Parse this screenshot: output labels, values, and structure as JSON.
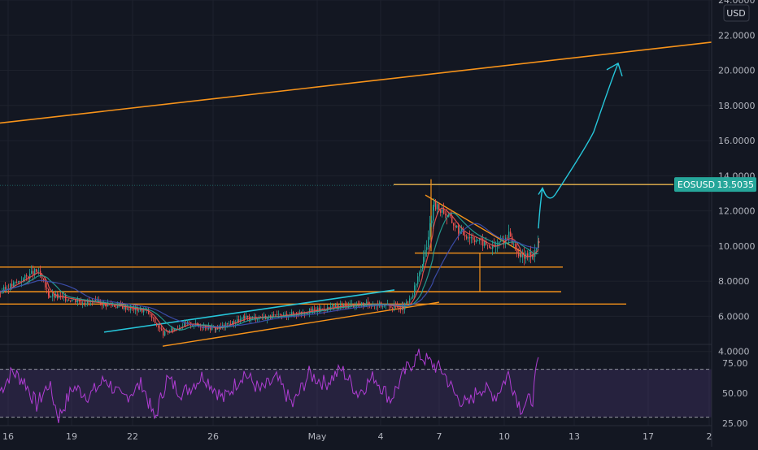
{
  "chart_data": {
    "type": "candlestick",
    "symbol": "EOSUSD",
    "currency": "USD",
    "last_price": 13.5035,
    "last_price_text": "13.5035",
    "price_axis": {
      "ylim": [
        3.2,
        24.0
      ],
      "ticks": [
        "24.0000",
        "22.0000",
        "20.0000",
        "18.0000",
        "16.0000",
        "14.0000",
        "12.0000",
        "10.0000",
        "8.0000",
        "6.0000",
        "4.0000"
      ],
      "tick_values": [
        24,
        22,
        20,
        18,
        16,
        14,
        12,
        10,
        8,
        6,
        4
      ]
    },
    "time_axis": {
      "labels": [
        "16",
        "19",
        "22",
        "26",
        "May",
        "4",
        "7",
        "10",
        "13",
        "17",
        "2"
      ]
    },
    "price_key_points": [
      {
        "t": 0,
        "v": 7.4
      },
      {
        "t": 30,
        "v": 8.2
      },
      {
        "t": 45,
        "v": 8.6
      },
      {
        "t": 60,
        "v": 7.2
      },
      {
        "t": 95,
        "v": 6.9
      },
      {
        "t": 130,
        "v": 6.7
      },
      {
        "t": 180,
        "v": 6.3
      },
      {
        "t": 200,
        "v": 5.0
      },
      {
        "t": 230,
        "v": 5.6
      },
      {
        "t": 265,
        "v": 5.3
      },
      {
        "t": 300,
        "v": 5.9
      },
      {
        "t": 340,
        "v": 6.0
      },
      {
        "t": 380,
        "v": 6.3
      },
      {
        "t": 420,
        "v": 6.6
      },
      {
        "t": 460,
        "v": 6.7
      },
      {
        "t": 495,
        "v": 6.5
      },
      {
        "t": 505,
        "v": 7.0
      },
      {
        "t": 520,
        "v": 9.2
      },
      {
        "t": 533,
        "v": 12.3
      },
      {
        "t": 545,
        "v": 12.0
      },
      {
        "t": 565,
        "v": 10.8
      },
      {
        "t": 585,
        "v": 10.4
      },
      {
        "t": 605,
        "v": 9.9
      },
      {
        "t": 625,
        "v": 10.6
      },
      {
        "t": 640,
        "v": 9.3
      },
      {
        "t": 655,
        "v": 9.6
      },
      {
        "t": 662,
        "v": 10.2
      }
    ],
    "annotations": {
      "resistance_trendline": {
        "from": {
          "t": 0,
          "v": 17.0
        },
        "to": {
          "t": 875,
          "v": 21.6
        }
      },
      "upper_horizontal": {
        "from": 484,
        "to": 828,
        "v": 13.5
      },
      "horizontals": [
        {
          "from": 0,
          "to": 692,
          "v": 8.8
        },
        {
          "from": 0,
          "to": 690,
          "v": 7.4
        },
        {
          "from": 0,
          "to": 770,
          "v": 6.7
        }
      ],
      "consolidation_box_line": {
        "from": 510,
        "to": 645,
        "v": 9.6
      },
      "triangle_top": {
        "from": {
          "t": 523,
          "v": 12.9
        },
        "to": {
          "t": 640,
          "v": 9.7
        }
      },
      "blue_trendline": {
        "from": {
          "t": 128,
          "v": 5.1
        },
        "to": {
          "t": 485,
          "v": 7.5
        }
      },
      "lower_trendline": {
        "from": {
          "t": 200,
          "v": 4.3
        },
        "to": {
          "t": 540,
          "v": 6.8
        }
      },
      "projection_path": [
        {
          "t": 662,
          "v": 11.0
        },
        {
          "t": 667,
          "v": 13.3
        },
        {
          "t": 685,
          "v": 13.1
        },
        {
          "t": 730,
          "v": 16.5
        },
        {
          "t": 760,
          "v": 20.4
        }
      ]
    },
    "rsi": {
      "upper_level": 70,
      "lower_level": 30,
      "ticks": [
        "75.00",
        "50.00",
        "25.00"
      ],
      "tick_values": [
        75,
        50,
        25
      ],
      "ylim": [
        23,
        88
      ],
      "key_points": [
        {
          "t": 0,
          "v": 52
        },
        {
          "t": 15,
          "v": 68
        },
        {
          "t": 30,
          "v": 60
        },
        {
          "t": 45,
          "v": 40
        },
        {
          "t": 60,
          "v": 58
        },
        {
          "t": 72,
          "v": 30
        },
        {
          "t": 90,
          "v": 55
        },
        {
          "t": 110,
          "v": 48
        },
        {
          "t": 130,
          "v": 62
        },
        {
          "t": 150,
          "v": 45
        },
        {
          "t": 175,
          "v": 58
        },
        {
          "t": 190,
          "v": 28
        },
        {
          "t": 205,
          "v": 62
        },
        {
          "t": 225,
          "v": 50
        },
        {
          "t": 250,
          "v": 65
        },
        {
          "t": 275,
          "v": 45
        },
        {
          "t": 300,
          "v": 67
        },
        {
          "t": 320,
          "v": 52
        },
        {
          "t": 340,
          "v": 62
        },
        {
          "t": 360,
          "v": 40
        },
        {
          "t": 380,
          "v": 66
        },
        {
          "t": 400,
          "v": 58
        },
        {
          "t": 420,
          "v": 70
        },
        {
          "t": 440,
          "v": 50
        },
        {
          "t": 460,
          "v": 64
        },
        {
          "t": 480,
          "v": 45
        },
        {
          "t": 500,
          "v": 70
        },
        {
          "t": 515,
          "v": 82
        },
        {
          "t": 530,
          "v": 75
        },
        {
          "t": 545,
          "v": 68
        },
        {
          "t": 560,
          "v": 48
        },
        {
          "t": 575,
          "v": 40
        },
        {
          "t": 590,
          "v": 55
        },
        {
          "t": 610,
          "v": 48
        },
        {
          "t": 625,
          "v": 66
        },
        {
          "t": 640,
          "v": 38
        },
        {
          "t": 655,
          "v": 46
        },
        {
          "t": 662,
          "v": 80
        }
      ]
    }
  }
}
